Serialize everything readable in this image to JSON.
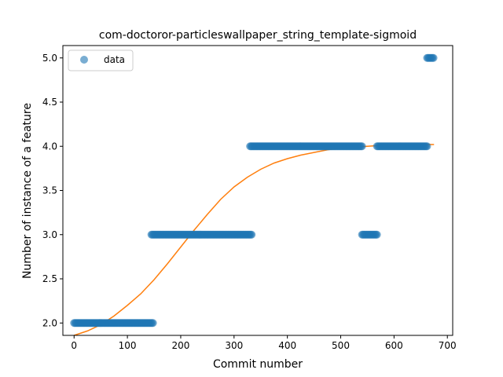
{
  "chart_data": {
    "type": "scatter",
    "title": "com-doctoror-particleswallpaper_string_template-sigmoid",
    "xlabel": "Commit number",
    "ylabel": "Number of instance of a feature",
    "xlim": [
      -21,
      710
    ],
    "ylim": [
      1.86,
      5.14
    ],
    "x_ticks": [
      0,
      100,
      200,
      300,
      400,
      500,
      600,
      700
    ],
    "y_ticks": [
      2.0,
      2.5,
      3.0,
      3.5,
      4.0,
      4.5,
      5.0
    ],
    "x_tick_labels": [
      "0",
      "100",
      "200",
      "300",
      "400",
      "500",
      "600",
      "700"
    ],
    "y_tick_labels": [
      "2.0",
      "2.5",
      "3.0",
      "3.5",
      "4.0",
      "4.5",
      "5.0"
    ],
    "grid": false,
    "legend": {
      "placement": "upper-left",
      "entries": [
        "data"
      ]
    },
    "colors": {
      "data": "#1f77b4",
      "fit": "#ff7f0e"
    },
    "series": [
      {
        "name": "data",
        "kind": "scatter",
        "segments": [
          {
            "x_start": 0,
            "x_end": 148,
            "y": 2
          },
          {
            "x_start": 145,
            "x_end": 333,
            "y": 3
          },
          {
            "x_start": 330,
            "x_end": 540,
            "y": 4
          },
          {
            "x_start": 540,
            "x_end": 568,
            "y": 3
          },
          {
            "x_start": 568,
            "x_end": 662,
            "y": 4
          },
          {
            "x_start": 662,
            "x_end": 675,
            "y": 5
          }
        ]
      },
      {
        "kind": "line",
        "x": [
          0,
          25,
          50,
          75,
          100,
          125,
          150,
          175,
          200,
          225,
          250,
          275,
          300,
          325,
          350,
          375,
          400,
          425,
          450,
          475,
          500,
          525,
          550,
          575,
          600,
          625,
          650,
          675
        ],
        "y": [
          1.86,
          1.91,
          1.98,
          2.08,
          2.2,
          2.33,
          2.49,
          2.67,
          2.86,
          3.05,
          3.23,
          3.4,
          3.54,
          3.65,
          3.74,
          3.81,
          3.86,
          3.9,
          3.93,
          3.96,
          3.98,
          3.99,
          4.0,
          4.01,
          4.01,
          4.02,
          4.02,
          4.02
        ]
      }
    ]
  }
}
